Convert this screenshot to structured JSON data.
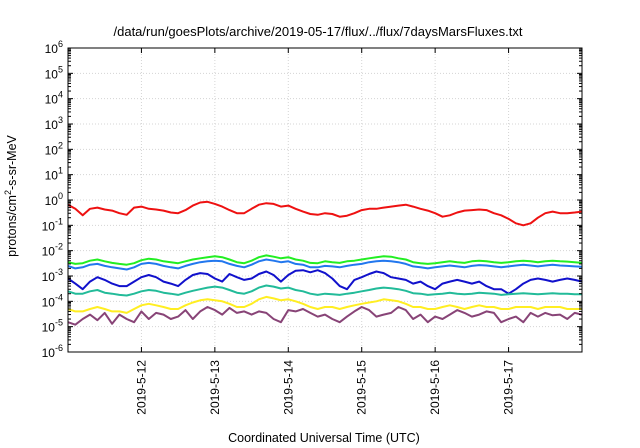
{
  "chart_data": {
    "type": "line",
    "title": "/data/run/goesPlots/archive/2019-05-17/flux/../flux/7daysMarsFluxes.txt",
    "xlabel": "Coordinated Universal Time (UTC)",
    "ylabel": {
      "base": "protons/cm",
      "sup": "2",
      "rest": "-s-sr-MeV"
    },
    "yscale": "log",
    "ylim": [
      1e-06,
      1000000.0
    ],
    "xlim": [
      0,
      7
    ],
    "x_tick_labels": [
      "2019-5-12",
      "2019-5-13",
      "2019-5-14",
      "2019-5-15",
      "2019-5-16",
      "2019-5-17"
    ],
    "y_ticks": [
      {
        "value": 1000000.0,
        "base": "10",
        "exp": "6"
      },
      {
        "value": 100000.0,
        "base": "10",
        "exp": "5"
      },
      {
        "value": 10000.0,
        "base": "10",
        "exp": "4"
      },
      {
        "value": 1000.0,
        "base": "10",
        "exp": "3"
      },
      {
        "value": 100.0,
        "base": "10",
        "exp": "2"
      },
      {
        "value": 10.0,
        "base": "10",
        "exp": "1"
      },
      {
        "value": 1.0,
        "base": "10",
        "exp": "0"
      },
      {
        "value": 0.1,
        "base": "10",
        "exp": "-1"
      },
      {
        "value": 0.01,
        "base": "10",
        "exp": "-2"
      },
      {
        "value": 0.001,
        "base": "10",
        "exp": "-3"
      },
      {
        "value": 0.0001,
        "base": "10",
        "exp": "-4"
      },
      {
        "value": 1e-05,
        "base": "10",
        "exp": "-5"
      },
      {
        "value": 1e-06,
        "base": "10",
        "exp": "-6"
      }
    ],
    "grid": true,
    "series": [
      {
        "color": "#ee1111",
        "x": [
          0,
          0.1,
          0.2,
          0.3,
          0.4,
          0.5,
          0.6,
          0.7,
          0.8,
          0.9,
          1,
          1.1,
          1.2,
          1.3,
          1.4,
          1.5,
          1.6,
          1.7,
          1.8,
          1.9,
          2,
          2.1,
          2.2,
          2.3,
          2.4,
          2.5,
          2.6,
          2.7,
          2.8,
          2.9,
          3,
          3.1,
          3.2,
          3.3,
          3.4,
          3.5,
          3.6,
          3.7,
          3.8,
          3.9,
          4,
          4.1,
          4.2,
          4.3,
          4.4,
          4.5,
          4.6,
          4.7,
          4.8,
          4.9,
          5,
          5.1,
          5.2,
          5.3,
          5.4,
          5.5,
          5.6,
          5.7,
          5.8,
          5.9,
          6,
          6.1,
          6.2,
          6.3,
          6.4,
          6.5,
          6.6,
          6.7,
          6.8,
          6.9,
          7
        ],
        "y": [
          0.65,
          0.45,
          0.25,
          0.45,
          0.5,
          0.42,
          0.38,
          0.3,
          0.26,
          0.5,
          0.55,
          0.45,
          0.42,
          0.38,
          0.32,
          0.3,
          0.4,
          0.6,
          0.8,
          0.85,
          0.7,
          0.55,
          0.4,
          0.3,
          0.3,
          0.45,
          0.65,
          0.75,
          0.7,
          0.55,
          0.6,
          0.45,
          0.35,
          0.28,
          0.26,
          0.3,
          0.28,
          0.22,
          0.24,
          0.3,
          0.4,
          0.45,
          0.45,
          0.5,
          0.55,
          0.6,
          0.65,
          0.55,
          0.45,
          0.38,
          0.3,
          0.22,
          0.25,
          0.32,
          0.38,
          0.4,
          0.42,
          0.4,
          0.3,
          0.25,
          0.18,
          0.12,
          0.1,
          0.12,
          0.2,
          0.3,
          0.35,
          0.3,
          0.3,
          0.32,
          0.35
        ]
      },
      {
        "color": "#22ee22",
        "x": [
          0,
          0.1,
          0.2,
          0.3,
          0.4,
          0.5,
          0.6,
          0.7,
          0.8,
          0.9,
          1,
          1.1,
          1.2,
          1.3,
          1.4,
          1.5,
          1.6,
          1.7,
          1.8,
          1.9,
          2,
          2.1,
          2.2,
          2.3,
          2.4,
          2.5,
          2.6,
          2.7,
          2.8,
          2.9,
          3,
          3.1,
          3.2,
          3.3,
          3.4,
          3.5,
          3.6,
          3.7,
          3.8,
          3.9,
          4,
          4.1,
          4.2,
          4.3,
          4.4,
          4.5,
          4.6,
          4.7,
          4.8,
          4.9,
          5,
          5.1,
          5.2,
          5.3,
          5.4,
          5.5,
          5.6,
          5.7,
          5.8,
          5.9,
          6,
          6.1,
          6.2,
          6.3,
          6.4,
          6.5,
          6.6,
          6.7,
          6.8,
          6.9,
          7
        ],
        "y": [
          0.0035,
          0.003,
          0.0032,
          0.004,
          0.0045,
          0.0038,
          0.0033,
          0.003,
          0.0028,
          0.0032,
          0.0042,
          0.0048,
          0.0045,
          0.0038,
          0.0035,
          0.0032,
          0.0038,
          0.0045,
          0.005,
          0.0055,
          0.006,
          0.0055,
          0.0045,
          0.0035,
          0.0032,
          0.004,
          0.0055,
          0.0065,
          0.0058,
          0.005,
          0.0055,
          0.0045,
          0.004,
          0.0033,
          0.0032,
          0.0038,
          0.0035,
          0.0033,
          0.0038,
          0.004,
          0.0045,
          0.005,
          0.0055,
          0.006,
          0.0058,
          0.005,
          0.0045,
          0.0035,
          0.0032,
          0.003,
          0.0032,
          0.0035,
          0.0038,
          0.0035,
          0.0033,
          0.0038,
          0.004,
          0.0038,
          0.0035,
          0.0033,
          0.0035,
          0.0038,
          0.004,
          0.0038,
          0.0035,
          0.0038,
          0.004,
          0.0038,
          0.0037,
          0.0035,
          0.0033
        ]
      },
      {
        "color": "#2277ee",
        "x": [
          0,
          0.1,
          0.2,
          0.3,
          0.4,
          0.5,
          0.6,
          0.7,
          0.8,
          0.9,
          1,
          1.1,
          1.2,
          1.3,
          1.4,
          1.5,
          1.6,
          1.7,
          1.8,
          1.9,
          2,
          2.1,
          2.2,
          2.3,
          2.4,
          2.5,
          2.6,
          2.7,
          2.8,
          2.9,
          3,
          3.1,
          3.2,
          3.3,
          3.4,
          3.5,
          3.6,
          3.7,
          3.8,
          3.9,
          4,
          4.1,
          4.2,
          4.3,
          4.4,
          4.5,
          4.6,
          4.7,
          4.8,
          4.9,
          5,
          5.1,
          5.2,
          5.3,
          5.4,
          5.5,
          5.6,
          5.7,
          5.8,
          5.9,
          6,
          6.1,
          6.2,
          6.3,
          6.4,
          6.5,
          6.6,
          6.7,
          6.8,
          6.9,
          7
        ],
        "y": [
          0.0025,
          0.002,
          0.0022,
          0.0028,
          0.003,
          0.0025,
          0.0022,
          0.002,
          0.0018,
          0.0022,
          0.003,
          0.0033,
          0.003,
          0.0025,
          0.0022,
          0.002,
          0.0025,
          0.003,
          0.0035,
          0.0038,
          0.004,
          0.0038,
          0.003,
          0.0025,
          0.0022,
          0.0028,
          0.0038,
          0.0045,
          0.004,
          0.0035,
          0.0038,
          0.003,
          0.0028,
          0.0022,
          0.0022,
          0.0025,
          0.0024,
          0.0022,
          0.0025,
          0.0028,
          0.003,
          0.0035,
          0.0038,
          0.004,
          0.0038,
          0.0035,
          0.003,
          0.0024,
          0.0022,
          0.002,
          0.0022,
          0.0024,
          0.0026,
          0.0024,
          0.0022,
          0.0025,
          0.0027,
          0.0026,
          0.0024,
          0.0022,
          0.0024,
          0.0026,
          0.0028,
          0.0026,
          0.0024,
          0.0026,
          0.0028,
          0.0026,
          0.0025,
          0.0024,
          0.0023
        ]
      },
      {
        "color": "#1111cc",
        "x": [
          0,
          0.1,
          0.2,
          0.3,
          0.4,
          0.5,
          0.6,
          0.7,
          0.8,
          0.9,
          1,
          1.1,
          1.2,
          1.3,
          1.4,
          1.5,
          1.6,
          1.7,
          1.8,
          1.9,
          2,
          2.1,
          2.2,
          2.3,
          2.4,
          2.5,
          2.6,
          2.7,
          2.8,
          2.9,
          3,
          3.1,
          3.2,
          3.3,
          3.4,
          3.5,
          3.6,
          3.7,
          3.8,
          3.9,
          4,
          4.1,
          4.2,
          4.3,
          4.4,
          4.5,
          4.6,
          4.7,
          4.8,
          4.9,
          5,
          5.1,
          5.2,
          5.3,
          5.4,
          5.5,
          5.6,
          5.7,
          5.8,
          5.9,
          6,
          6.1,
          6.2,
          6.3,
          6.4,
          6.5,
          6.6,
          6.7,
          6.8,
          6.9,
          7
        ],
        "y": [
          0.0008,
          0.0005,
          0.0003,
          0.0006,
          0.0009,
          0.0007,
          0.0005,
          0.0004,
          0.0004,
          0.0006,
          0.0009,
          0.0011,
          0.0009,
          0.0006,
          0.0005,
          0.0004,
          0.0007,
          0.0011,
          0.0013,
          0.0012,
          0.0008,
          0.0006,
          0.0012,
          0.0009,
          0.0007,
          0.0008,
          0.0012,
          0.0015,
          0.0011,
          0.0006,
          0.0011,
          0.0016,
          0.0017,
          0.0014,
          0.0017,
          0.0013,
          0.0008,
          0.0004,
          0.0003,
          0.0007,
          0.0009,
          0.0012,
          0.0015,
          0.0013,
          0.0009,
          0.0008,
          0.0007,
          0.0005,
          0.0006,
          0.0004,
          0.0003,
          0.0005,
          0.0006,
          0.0007,
          0.0006,
          0.0005,
          0.0006,
          0.0004,
          0.0003,
          0.0003,
          0.0002,
          0.0003,
          0.0005,
          0.0007,
          0.0008,
          0.0007,
          0.0006,
          0.0007,
          0.0008,
          0.0007,
          0.0006
        ]
      },
      {
        "color": "#22bb99",
        "x": [
          0,
          0.1,
          0.2,
          0.3,
          0.4,
          0.5,
          0.6,
          0.7,
          0.8,
          0.9,
          1,
          1.1,
          1.2,
          1.3,
          1.4,
          1.5,
          1.6,
          1.7,
          1.8,
          1.9,
          2,
          2.1,
          2.2,
          2.3,
          2.4,
          2.5,
          2.6,
          2.7,
          2.8,
          2.9,
          3,
          3.1,
          3.2,
          3.3,
          3.4,
          3.5,
          3.6,
          3.7,
          3.8,
          3.9,
          4,
          4.1,
          4.2,
          4.3,
          4.4,
          4.5,
          4.6,
          4.7,
          4.8,
          4.9,
          5,
          5.1,
          5.2,
          5.3,
          5.4,
          5.5,
          5.6,
          5.7,
          5.8,
          5.9,
          6,
          6.1,
          6.2,
          6.3,
          6.4,
          6.5,
          6.6,
          6.7,
          6.8,
          6.9,
          7
        ],
        "y": [
          0.00025,
          0.0002,
          0.0002,
          0.00025,
          0.00028,
          0.00022,
          0.0002,
          0.00018,
          0.00017,
          0.0002,
          0.00025,
          0.00028,
          0.00026,
          0.00022,
          0.0002,
          0.00018,
          0.00022,
          0.00026,
          0.0003,
          0.00035,
          0.00038,
          0.00035,
          0.00028,
          0.00022,
          0.0002,
          0.00025,
          0.00035,
          0.00042,
          0.00038,
          0.00032,
          0.00035,
          0.00028,
          0.00025,
          0.0002,
          0.00018,
          0.0002,
          0.00019,
          0.00018,
          0.0002,
          0.00022,
          0.00025,
          0.00028,
          0.00032,
          0.00035,
          0.00033,
          0.0003,
          0.00026,
          0.00021,
          0.0002,
          0.00018,
          0.00019,
          0.0002,
          0.00022,
          0.0002,
          0.00019,
          0.0002,
          0.00022,
          0.00021,
          0.0002,
          0.00018,
          0.00019,
          0.0002,
          0.00021,
          0.0002,
          0.00019,
          0.0002,
          0.00021,
          0.0002,
          0.0002,
          0.00019,
          0.00019
        ]
      },
      {
        "color": "#ffee22",
        "x": [
          0,
          0.1,
          0.2,
          0.3,
          0.4,
          0.5,
          0.6,
          0.7,
          0.8,
          0.9,
          1,
          1.1,
          1.2,
          1.3,
          1.4,
          1.5,
          1.6,
          1.7,
          1.8,
          1.9,
          2,
          2.1,
          2.2,
          2.3,
          2.4,
          2.5,
          2.6,
          2.7,
          2.8,
          2.9,
          3,
          3.1,
          3.2,
          3.3,
          3.4,
          3.5,
          3.6,
          3.7,
          3.8,
          3.9,
          4,
          4.1,
          4.2,
          4.3,
          4.4,
          4.5,
          4.6,
          4.7,
          4.8,
          4.9,
          5,
          5.1,
          5.2,
          5.3,
          5.4,
          5.5,
          5.6,
          5.7,
          5.8,
          5.9,
          6,
          6.1,
          6.2,
          6.3,
          6.4,
          6.5,
          6.6,
          6.7,
          6.8,
          6.9,
          7
        ],
        "y": [
          5e-05,
          4e-05,
          4e-05,
          5e-05,
          6e-05,
          5e-05,
          4e-05,
          4e-05,
          3.5e-05,
          5e-05,
          7e-05,
          8e-05,
          7e-05,
          6e-05,
          5e-05,
          5e-05,
          7e-05,
          9e-05,
          0.00011,
          0.00012,
          0.00011,
          0.0001,
          8e-05,
          6e-05,
          6e-05,
          8e-05,
          0.00012,
          0.00015,
          0.00013,
          0.00011,
          0.00012,
          0.0001,
          8e-05,
          6e-05,
          5e-05,
          6e-05,
          6e-05,
          5e-05,
          6e-05,
          7e-05,
          8e-05,
          9e-05,
          0.0001,
          0.00012,
          0.00011,
          0.0001,
          8e-05,
          6e-05,
          6e-05,
          5e-05,
          5e-05,
          6e-05,
          7e-05,
          6e-05,
          5e-05,
          6e-05,
          7e-05,
          6e-05,
          6e-05,
          5e-05,
          5e-05,
          6e-05,
          6e-05,
          6e-05,
          5e-05,
          6e-05,
          6e-05,
          6e-05,
          5e-05,
          5e-05,
          5e-05
        ]
      },
      {
        "color": "#884477",
        "x": [
          0,
          0.1,
          0.2,
          0.3,
          0.4,
          0.5,
          0.6,
          0.7,
          0.8,
          0.9,
          1,
          1.1,
          1.2,
          1.3,
          1.4,
          1.5,
          1.6,
          1.7,
          1.8,
          1.9,
          2,
          2.1,
          2.2,
          2.3,
          2.4,
          2.5,
          2.6,
          2.7,
          2.8,
          2.9,
          3,
          3.1,
          3.2,
          3.3,
          3.4,
          3.5,
          3.6,
          3.7,
          3.8,
          3.9,
          4,
          4.1,
          4.2,
          4.3,
          4.4,
          4.5,
          4.6,
          4.7,
          4.8,
          4.9,
          5,
          5.1,
          5.2,
          5.3,
          5.4,
          5.5,
          5.6,
          5.7,
          5.8,
          5.9,
          6,
          6.1,
          6.2,
          6.3,
          6.4,
          6.5,
          6.6,
          6.7,
          6.8,
          6.9,
          7
        ],
        "y": [
          1.5e-05,
          1.2e-05,
          2e-05,
          3e-05,
          1.8e-05,
          3.5e-05,
          1.3e-05,
          3e-05,
          2e-05,
          1.5e-05,
          4e-05,
          2e-05,
          3.5e-05,
          3e-05,
          2e-05,
          2.5e-05,
          4.5e-05,
          2e-05,
          4e-05,
          6e-05,
          4.5e-05,
          3e-05,
          5.5e-05,
          3.5e-05,
          4e-05,
          3e-05,
          4e-05,
          3.5e-05,
          2e-05,
          1.5e-05,
          4.5e-05,
          4e-05,
          5e-05,
          3.5e-05,
          2.5e-05,
          3e-05,
          2e-05,
          1.5e-05,
          2.5e-05,
          4e-05,
          6e-05,
          4.5e-05,
          2.5e-05,
          3e-05,
          3.5e-05,
          6e-05,
          4.5e-05,
          2e-05,
          3e-05,
          1.5e-05,
          2.5e-05,
          2e-05,
          3e-05,
          4.5e-05,
          3.5e-05,
          2.5e-05,
          3e-05,
          4e-05,
          3.5e-05,
          1.5e-05,
          2e-05,
          2.5e-05,
          1.5e-05,
          3.5e-05,
          2.5e-05,
          3.5e-05,
          2.8e-05,
          3e-05,
          2e-05,
          3.5e-05,
          3e-05
        ]
      }
    ]
  }
}
